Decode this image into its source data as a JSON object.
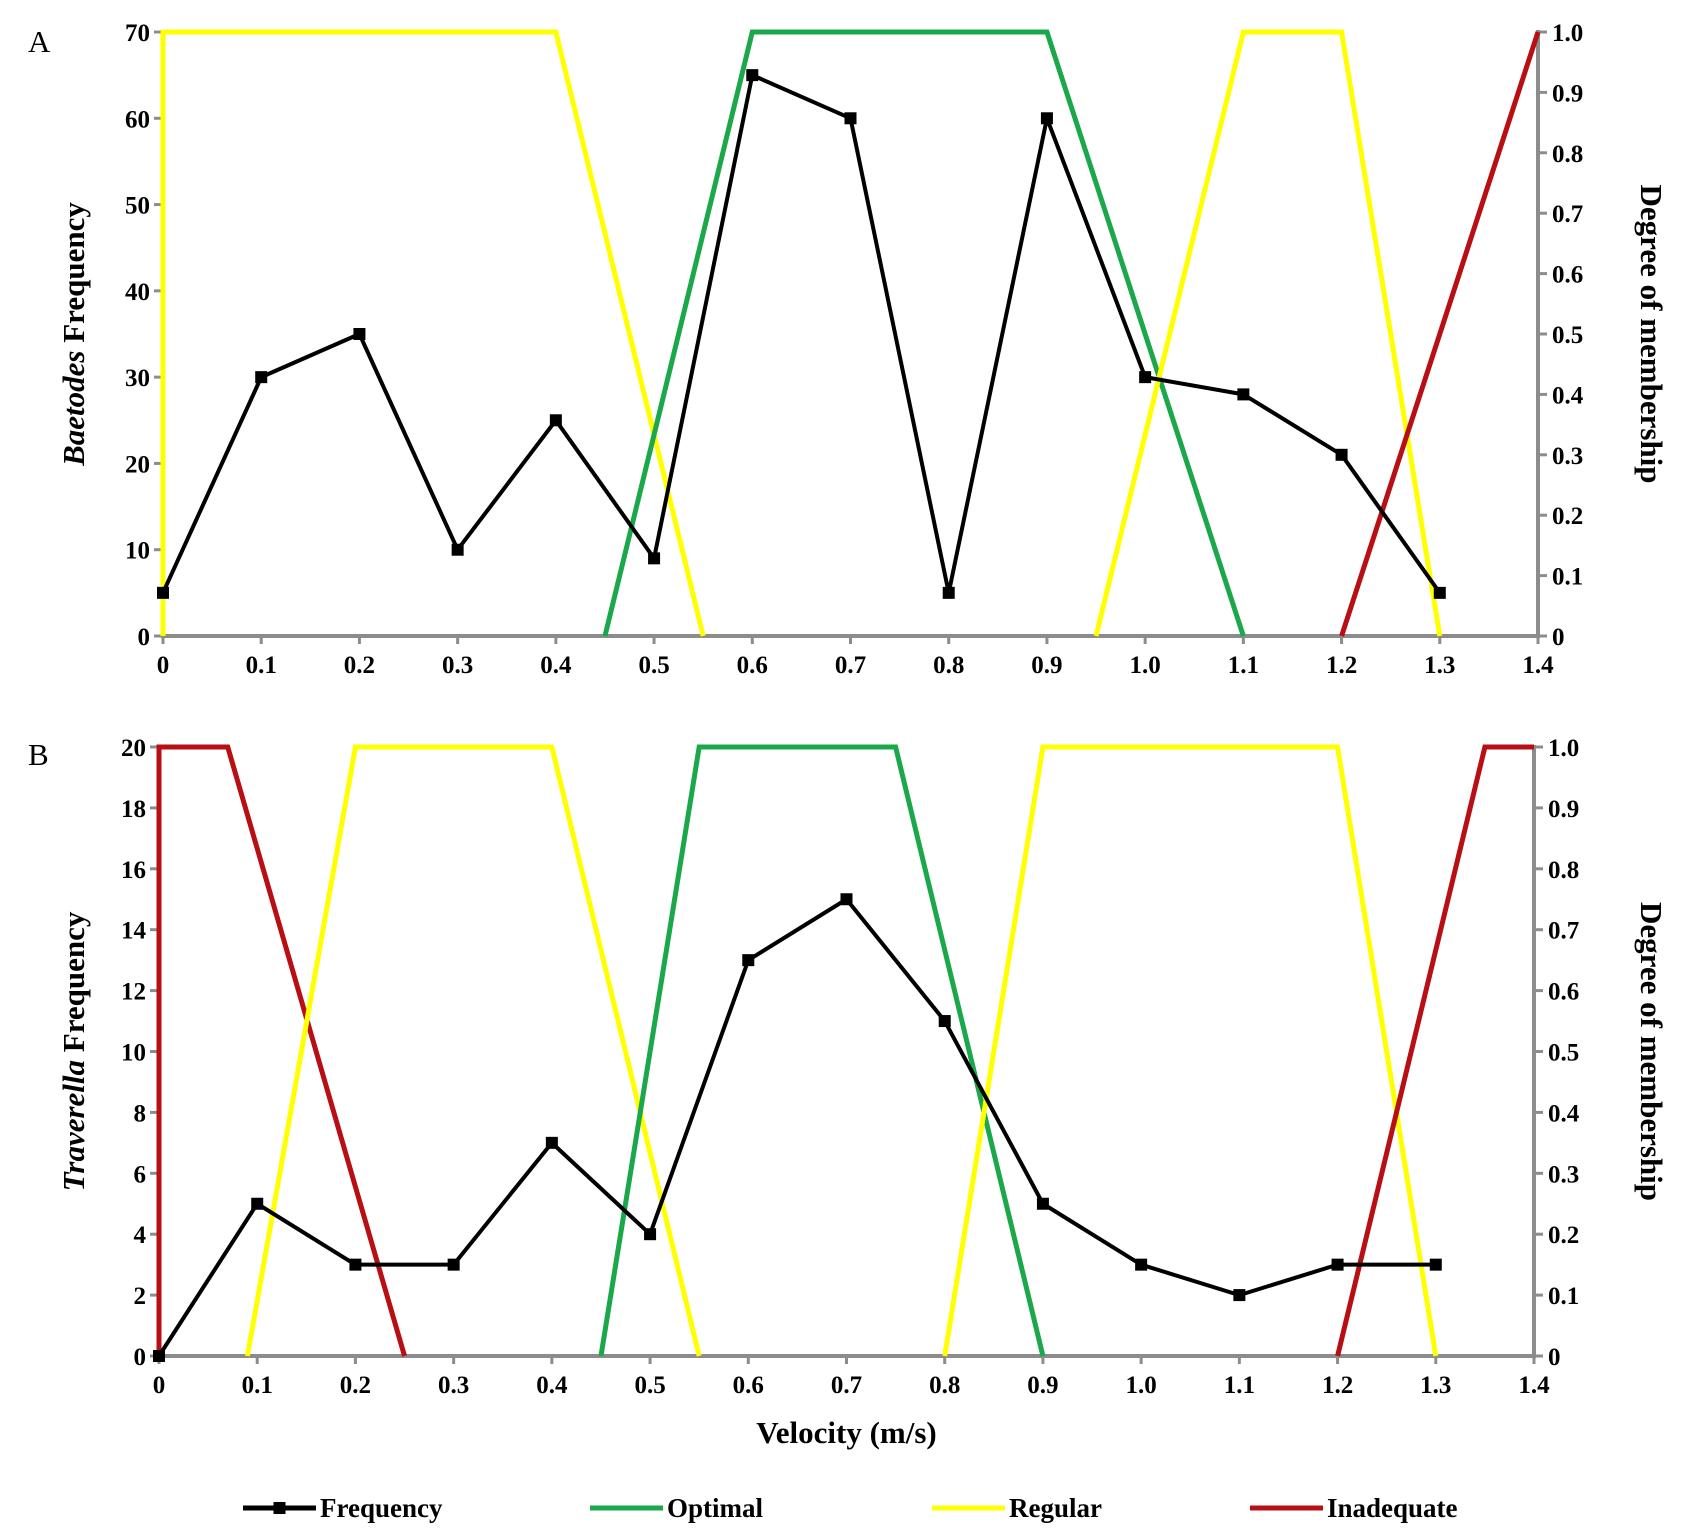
{
  "chart_data": [
    {
      "type": "line",
      "panel_label": "A",
      "ylabel_italic": "Baetodes",
      "ylabel_rest": " Frequency",
      "y2label": "Degree of membership",
      "xlabel": "",
      "xlim": [
        0,
        1.4
      ],
      "ylim": [
        0,
        70
      ],
      "y2lim": [
        0,
        1
      ],
      "x_ticks": [
        "0",
        "0.1",
        "0.2",
        "0.3",
        "0.4",
        "0.5",
        "0.6",
        "0.7",
        "0.8",
        "0.9",
        "1.0",
        "1.1",
        "1.2",
        "1.3",
        "1.4"
      ],
      "y_ticks": [
        "0",
        "10",
        "20",
        "30",
        "40",
        "50",
        "60",
        "70"
      ],
      "y2_ticks": [
        "0",
        "0.1",
        "0.2",
        "0.3",
        "0.4",
        "0.5",
        "0.6",
        "0.7",
        "0.8",
        "0.9",
        "1.0"
      ],
      "frequency": {
        "name": "Frequency",
        "x": [
          0,
          0.1,
          0.2,
          0.3,
          0.4,
          0.5,
          0.6,
          0.7,
          0.8,
          0.9,
          1.0,
          1.1,
          1.2,
          1.3
        ],
        "y": [
          5,
          30,
          35,
          10,
          25,
          9,
          65,
          60,
          5,
          60,
          30,
          28,
          21,
          5
        ]
      },
      "membership": [
        {
          "name": "Regular",
          "x": [
            0,
            0,
            0.4,
            0.55
          ],
          "y": [
            0,
            1,
            1,
            0
          ]
        },
        {
          "name": "Optimal",
          "x": [
            0.45,
            0.6,
            0.9,
            1.1
          ],
          "y": [
            0,
            1,
            1,
            0
          ]
        },
        {
          "name": "Regular",
          "x": [
            0.95,
            1.1,
            1.2,
            1.3
          ],
          "y": [
            0,
            1,
            1,
            0
          ]
        },
        {
          "name": "Inadequate",
          "x": [
            1.2,
            1.4
          ],
          "y": [
            0,
            1
          ]
        }
      ]
    },
    {
      "type": "line",
      "panel_label": "B",
      "ylabel_italic": "Traverella",
      "ylabel_rest": " Frequency",
      "y2label": "Degree of membership",
      "xlabel": "Velocity (m/s)",
      "xlim": [
        0,
        1.4
      ],
      "ylim": [
        0,
        20
      ],
      "y2lim": [
        0,
        1
      ],
      "x_ticks": [
        "0",
        "0.1",
        "0.2",
        "0.3",
        "0.4",
        "0.5",
        "0.6",
        "0.7",
        "0.8",
        "0.9",
        "1.0",
        "1.1",
        "1.2",
        "1.3",
        "1.4"
      ],
      "y_ticks": [
        "0",
        "2",
        "4",
        "6",
        "8",
        "10",
        "12",
        "14",
        "16",
        "18",
        "20"
      ],
      "y2_ticks": [
        "0",
        "0.1",
        "0.2",
        "0.3",
        "0.4",
        "0.5",
        "0.6",
        "0.7",
        "0.8",
        "0.9",
        "1.0"
      ],
      "frequency": {
        "name": "Frequency",
        "x": [
          0,
          0.1,
          0.2,
          0.3,
          0.4,
          0.5,
          0.6,
          0.7,
          0.8,
          0.9,
          1.0,
          1.1,
          1.2,
          1.3
        ],
        "y": [
          0,
          5,
          3,
          3,
          7,
          4,
          13,
          15,
          11,
          5,
          3,
          2,
          3,
          3
        ]
      },
      "membership": [
        {
          "name": "Inadequate",
          "x": [
            0,
            0,
            0.07,
            0.25
          ],
          "y": [
            0,
            1,
            1,
            0
          ]
        },
        {
          "name": "Regular",
          "x": [
            0.09,
            0.2,
            0.4,
            0.55
          ],
          "y": [
            0,
            1,
            1,
            0
          ]
        },
        {
          "name": "Optimal",
          "x": [
            0.45,
            0.55,
            0.75,
            0.9
          ],
          "y": [
            0,
            1,
            1,
            0
          ]
        },
        {
          "name": "Regular",
          "x": [
            0.8,
            0.9,
            1.2,
            1.3
          ],
          "y": [
            0,
            1,
            1,
            0
          ]
        },
        {
          "name": "Inadequate",
          "x": [
            1.2,
            1.35,
            1.4
          ],
          "y": [
            0,
            1,
            1
          ]
        }
      ]
    }
  ],
  "legend": [
    {
      "name": "Frequency",
      "color": "#000000",
      "marker": true
    },
    {
      "name": "Optimal",
      "color": "#1aa84a",
      "marker": false
    },
    {
      "name": "Regular",
      "color": "#ffff00",
      "marker": false
    },
    {
      "name": "Inadequate",
      "color": "#b80f14",
      "marker": false
    }
  ],
  "colors": {
    "Frequency": "#000000",
    "Optimal": "#1aa84a",
    "Regular": "#ffff00",
    "Inadequate": "#b80f14",
    "axis": "#8c8c8c"
  }
}
